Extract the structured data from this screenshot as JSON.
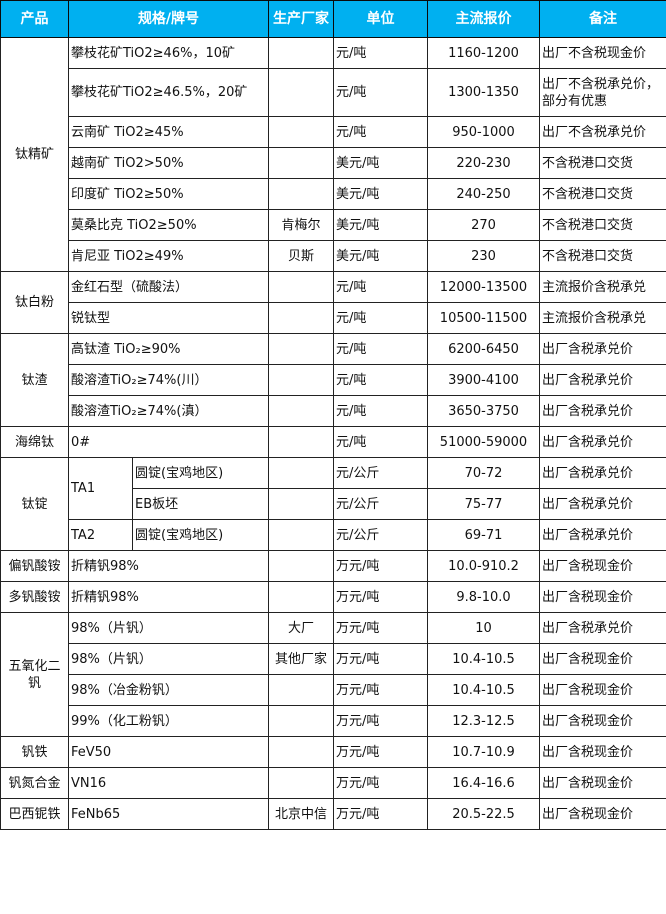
{
  "header_color": "#00b0f0",
  "headers": [
    "产品",
    "规格/牌号",
    "生产厂家",
    "单位",
    "主流报价",
    "备注"
  ],
  "rows": [
    {
      "product": "钛精矿",
      "spec": "攀枝花矿TiO2≥46%，10矿",
      "maker": "",
      "unit": "元/吨",
      "price": "1160-1200",
      "note": "出厂不含税现金价"
    },
    {
      "spec": "攀枝花矿TiO2≥46.5%，20矿",
      "maker": "",
      "unit": "元/吨",
      "price": "1300-1350",
      "note": "出厂不含税承兑价，部分有优惠"
    },
    {
      "spec": "云南矿 TiO2≥45%",
      "maker": "",
      "unit": "元/吨",
      "price": "950-1000",
      "note": "出厂不含税承兑价"
    },
    {
      "spec": "越南矿 TiO2>50%",
      "maker": "",
      "unit": "美元/吨",
      "price": "220-230",
      "note": "不含税港口交货"
    },
    {
      "spec": "印度矿 TiO2≥50%",
      "maker": "",
      "unit": "美元/吨",
      "price": "240-250",
      "note": "不含税港口交货"
    },
    {
      "spec": "莫桑比克 TiO2≥50%",
      "maker": "肯梅尔",
      "unit": "美元/吨",
      "price": "270",
      "note": "不含税港口交货"
    },
    {
      "spec": "肯尼亚 TiO2≥49%",
      "maker": "贝斯",
      "unit": "美元/吨",
      "price": "230",
      "note": "不含税港口交货"
    },
    {
      "product": "钛白粉",
      "spec": "金红石型（硫酸法）",
      "maker": "",
      "unit": "元/吨",
      "price": "12000-13500",
      "note": "主流报价含税承兑"
    },
    {
      "spec": "锐钛型",
      "maker": "",
      "unit": "元/吨",
      "price": "10500-11500",
      "note": "主流报价含税承兑"
    },
    {
      "product": "钛渣",
      "spec": "高钛渣 TiO₂≥90%",
      "maker": "",
      "unit": "元/吨",
      "price": "6200-6450",
      "note": "出厂含税承兑价"
    },
    {
      "spec": "酸溶渣TiO₂≥74%(川）",
      "maker": "",
      "unit": "元/吨",
      "price": "3900-4100",
      "note": "出厂含税承兑价"
    },
    {
      "spec": "酸溶渣TiO₂≥74%(滇）",
      "maker": "",
      "unit": "元/吨",
      "price": "3650-3750",
      "note": "出厂含税承兑价"
    },
    {
      "product": "海绵钛",
      "spec": "0#",
      "maker": "",
      "unit": "元/吨",
      "price": "51000-59000",
      "note": "出厂含税承兑价"
    },
    {
      "product": "钛锭",
      "grade": "TA1",
      "spec": "圆锭(宝鸡地区)",
      "maker": "",
      "unit": "元/公斤",
      "price": "70-72",
      "note": "出厂含税承兑价"
    },
    {
      "spec": "EB板坯",
      "maker": "",
      "unit": "元/公斤",
      "price": "75-77",
      "note": "出厂含税承兑价"
    },
    {
      "grade": "TA2",
      "spec": "圆锭(宝鸡地区)",
      "maker": "",
      "unit": "元/公斤",
      "price": "69-71",
      "note": "出厂含税承兑价"
    },
    {
      "product": "偏钒酸铵",
      "spec": "折精钒98%",
      "maker": "",
      "unit": "万元/吨",
      "price": "10.0-910.2",
      "note": "出厂含税现金价"
    },
    {
      "product": "多钒酸铵",
      "spec": "折精钒98%",
      "maker": "",
      "unit": "万元/吨",
      "price": "9.8-10.0",
      "note": "出厂含税现金价"
    },
    {
      "product": "五氧化二钒",
      "spec": "98%（片钒）",
      "maker": "大厂",
      "unit": "万元/吨",
      "price": "10",
      "note": "出厂含税承兑价"
    },
    {
      "spec": "98%（片钒）",
      "maker": "其他厂家",
      "unit": "万元/吨",
      "price": "10.4-10.5",
      "note": "出厂含税现金价"
    },
    {
      "spec": "98%（冶金粉钒）",
      "maker": "",
      "unit": "万元/吨",
      "price": "10.4-10.5",
      "note": "出厂含税现金价"
    },
    {
      "spec": "99%（化工粉钒）",
      "maker": "",
      "unit": "万元/吨",
      "price": "12.3-12.5",
      "note": "出厂含税现金价"
    },
    {
      "product": "钒铁",
      "spec": "FeV50",
      "maker": "",
      "unit": "万元/吨",
      "price": "10.7-10.9",
      "note": "出厂含税现金价"
    },
    {
      "product": "钒氮合金",
      "spec": "VN16",
      "maker": "",
      "unit": "万元/吨",
      "price": "16.4-16.6",
      "note": "出厂含税现金价"
    },
    {
      "product": "巴西铌铁",
      "spec": "FeNb65",
      "maker": "北京中信",
      "unit": "万元/吨",
      "price": "20.5-22.5",
      "note": "出厂含税现金价"
    }
  ]
}
